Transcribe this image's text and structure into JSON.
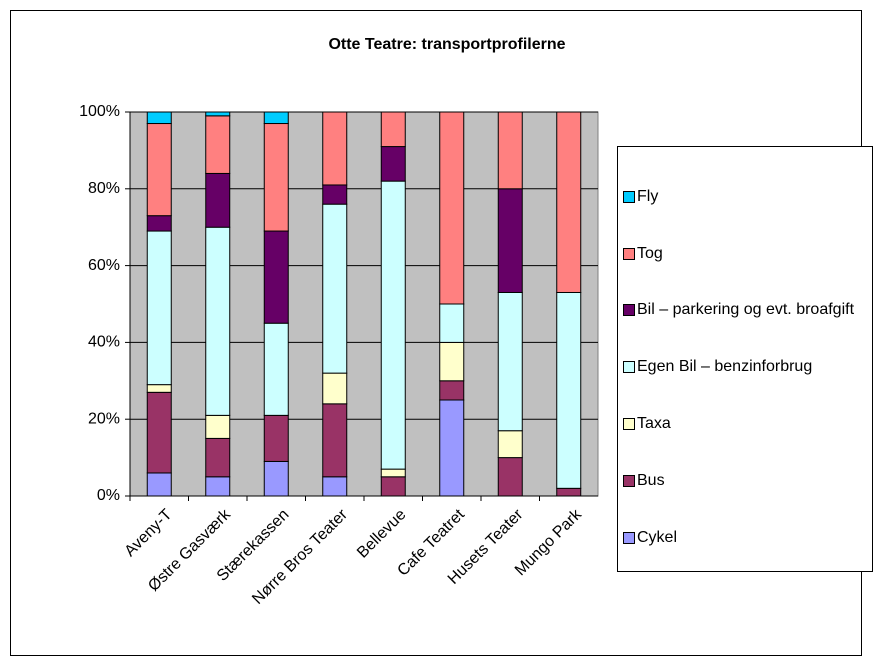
{
  "chart_data": {
    "type": "stacked_bar",
    "title": "Otte Teatre: transportprofilerne",
    "categories": [
      "Aveny-T",
      "Østre Gasværk",
      "Stærekassen",
      "Nørre Bros Teater",
      "Bellevue",
      "Cafe Teatret",
      "Husets Teater",
      "Mungo Park"
    ],
    "series": [
      {
        "name": "Cykel",
        "color": "#9999ff",
        "values": [
          6,
          5,
          9,
          5,
          0,
          25,
          0,
          0
        ]
      },
      {
        "name": "Bus",
        "color": "#993366",
        "values": [
          21,
          10,
          12,
          19,
          5,
          5,
          10,
          2
        ]
      },
      {
        "name": "Taxa",
        "color": "#ffffcc",
        "values": [
          2,
          6,
          0,
          8,
          2,
          10,
          7,
          0
        ]
      },
      {
        "name": "Egen Bil – benzinforbrug",
        "color": "#ccffff",
        "values": [
          40,
          49,
          24,
          44,
          75,
          10,
          36,
          51
        ]
      },
      {
        "name": "Bil – parkering og evt. broafgift",
        "color": "#660066",
        "values": [
          4,
          14,
          24,
          5,
          9,
          0,
          27,
          0
        ]
      },
      {
        "name": "Tog",
        "color": "#ff8080",
        "values": [
          24,
          15,
          28,
          19,
          9,
          50,
          20,
          47
        ]
      },
      {
        "name": "Fly",
        "color": "#00ccff",
        "values": [
          3,
          1,
          3,
          0,
          0,
          0,
          0,
          0
        ]
      }
    ],
    "ylim": [
      0,
      100
    ],
    "yticks": [
      {
        "value": 0,
        "label": "0%"
      },
      {
        "value": 20,
        "label": "20%"
      },
      {
        "value": 40,
        "label": "40%"
      },
      {
        "value": 60,
        "label": "60%"
      },
      {
        "value": 80,
        "label": "80%"
      },
      {
        "value": 100,
        "label": "100%"
      }
    ],
    "grid": true,
    "legend": "right"
  }
}
